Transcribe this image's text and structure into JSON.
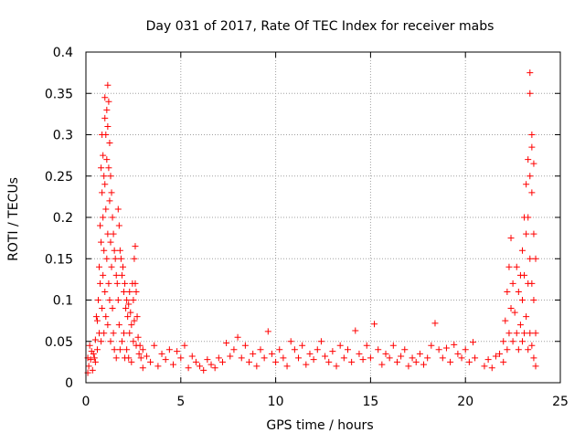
{
  "chart_data": {
    "type": "scatter",
    "title": "Day 031 of 2017, Rate Of TEC Index for receiver mabs",
    "xlabel": "GPS time / hours",
    "ylabel": "ROTI / TECUs",
    "xlim": [
      0,
      25
    ],
    "ylim": [
      0,
      0.4
    ],
    "x_ticks": [
      0,
      5,
      10,
      15,
      20,
      25
    ],
    "x_tick_labels": [
      "0",
      "5",
      "10",
      "15",
      "20",
      "25"
    ],
    "y_ticks": [
      0,
      0.05,
      0.1,
      0.15,
      0.2,
      0.25,
      0.3,
      0.35,
      0.4
    ],
    "y_tick_labels": [
      "0",
      "0.05",
      "0.1",
      "0.15",
      "0.2",
      "0.25",
      "0.3",
      "0.35",
      "0.4"
    ],
    "grid": true,
    "marker": "+",
    "marker_color": "#ff0000",
    "series": [
      {
        "name": "ROTI",
        "points": [
          [
            0.1,
            0.012
          ],
          [
            0.1,
            0.03
          ],
          [
            0.15,
            0.02
          ],
          [
            0.2,
            0.045
          ],
          [
            0.25,
            0.028
          ],
          [
            0.3,
            0.038
          ],
          [
            0.35,
            0.015
          ],
          [
            0.4,
            0.035
          ],
          [
            0.45,
            0.03
          ],
          [
            0.5,
            0.052
          ],
          [
            0.5,
            0.025
          ],
          [
            0.55,
            0.08
          ],
          [
            0.6,
            0.075
          ],
          [
            0.6,
            0.04
          ],
          [
            0.65,
            0.1
          ],
          [
            0.7,
            0.14
          ],
          [
            0.7,
            0.06
          ],
          [
            0.75,
            0.19
          ],
          [
            0.75,
            0.12
          ],
          [
            0.8,
            0.26
          ],
          [
            0.8,
            0.17
          ],
          [
            0.8,
            0.05
          ],
          [
            0.85,
            0.3
          ],
          [
            0.85,
            0.23
          ],
          [
            0.85,
            0.09
          ],
          [
            0.9,
            0.275
          ],
          [
            0.9,
            0.2
          ],
          [
            0.9,
            0.13
          ],
          [
            0.95,
            0.25
          ],
          [
            0.95,
            0.16
          ],
          [
            0.95,
            0.06
          ],
          [
            1.0,
            0.345
          ],
          [
            1.0,
            0.32
          ],
          [
            1.0,
            0.24
          ],
          [
            1.0,
            0.11
          ],
          [
            1.05,
            0.3
          ],
          [
            1.05,
            0.21
          ],
          [
            1.05,
            0.08
          ],
          [
            1.1,
            0.33
          ],
          [
            1.1,
            0.27
          ],
          [
            1.1,
            0.15
          ],
          [
            1.15,
            0.36
          ],
          [
            1.15,
            0.31
          ],
          [
            1.15,
            0.18
          ],
          [
            1.15,
            0.07
          ],
          [
            1.2,
            0.34
          ],
          [
            1.2,
            0.26
          ],
          [
            1.2,
            0.12
          ],
          [
            1.25,
            0.29
          ],
          [
            1.25,
            0.22
          ],
          [
            1.25,
            0.1
          ],
          [
            1.3,
            0.25
          ],
          [
            1.3,
            0.17
          ],
          [
            1.3,
            0.05
          ],
          [
            1.35,
            0.23
          ],
          [
            1.35,
            0.14
          ],
          [
            1.4,
            0.2
          ],
          [
            1.4,
            0.09
          ],
          [
            1.45,
            0.18
          ],
          [
            1.45,
            0.06
          ],
          [
            1.5,
            0.16
          ],
          [
            1.5,
            0.04
          ],
          [
            1.55,
            0.15
          ],
          [
            1.6,
            0.13
          ],
          [
            1.6,
            0.03
          ],
          [
            1.65,
            0.12
          ],
          [
            1.7,
            0.21
          ],
          [
            1.7,
            0.1
          ],
          [
            1.75,
            0.19
          ],
          [
            1.75,
            0.07
          ],
          [
            1.8,
            0.16
          ],
          [
            1.8,
            0.04
          ],
          [
            1.85,
            0.15
          ],
          [
            1.9,
            0.13
          ],
          [
            1.9,
            0.05
          ],
          [
            1.95,
            0.14
          ],
          [
            2.0,
            0.11
          ],
          [
            2.0,
            0.06
          ],
          [
            2.05,
            0.12
          ],
          [
            2.05,
            0.03
          ],
          [
            2.1,
            0.09
          ],
          [
            2.15,
            0.1
          ],
          [
            2.15,
            0.04
          ],
          [
            2.2,
            0.08
          ],
          [
            2.25,
            0.095
          ],
          [
            2.25,
            0.03
          ],
          [
            2.3,
            0.11
          ],
          [
            2.3,
            0.06
          ],
          [
            2.35,
            0.085
          ],
          [
            2.4,
            0.07
          ],
          [
            2.4,
            0.025
          ],
          [
            2.45,
            0.12
          ],
          [
            2.5,
            0.1
          ],
          [
            2.5,
            0.05
          ],
          [
            2.55,
            0.15
          ],
          [
            2.55,
            0.075
          ],
          [
            2.6,
            0.165
          ],
          [
            2.6,
            0.12
          ],
          [
            2.65,
            0.11
          ],
          [
            2.65,
            0.045
          ],
          [
            2.7,
            0.08
          ],
          [
            2.75,
            0.055
          ],
          [
            2.8,
            0.035
          ],
          [
            2.85,
            0.045
          ],
          [
            2.9,
            0.03
          ],
          [
            3.0,
            0.04
          ],
          [
            3.0,
            0.018
          ],
          [
            3.2,
            0.032
          ],
          [
            3.4,
            0.025
          ],
          [
            3.6,
            0.045
          ],
          [
            3.8,
            0.02
          ],
          [
            4.0,
            0.035
          ],
          [
            4.2,
            0.028
          ],
          [
            4.4,
            0.04
          ],
          [
            4.6,
            0.022
          ],
          [
            4.8,
            0.038
          ],
          [
            5.0,
            0.03
          ],
          [
            5.2,
            0.045
          ],
          [
            5.4,
            0.018
          ],
          [
            5.6,
            0.032
          ],
          [
            5.8,
            0.025
          ],
          [
            6.0,
            0.02
          ],
          [
            6.2,
            0.015
          ],
          [
            6.4,
            0.028
          ],
          [
            6.6,
            0.022
          ],
          [
            6.8,
            0.018
          ],
          [
            7.0,
            0.03
          ],
          [
            7.2,
            0.025
          ],
          [
            7.4,
            0.048
          ],
          [
            7.6,
            0.032
          ],
          [
            7.8,
            0.04
          ],
          [
            8.0,
            0.055
          ],
          [
            8.2,
            0.03
          ],
          [
            8.4,
            0.045
          ],
          [
            8.6,
            0.025
          ],
          [
            8.8,
            0.035
          ],
          [
            9.0,
            0.02
          ],
          [
            9.2,
            0.04
          ],
          [
            9.4,
            0.03
          ],
          [
            9.6,
            0.062
          ],
          [
            9.8,
            0.035
          ],
          [
            10.0,
            0.025
          ],
          [
            10.2,
            0.04
          ],
          [
            10.4,
            0.03
          ],
          [
            10.6,
            0.02
          ],
          [
            10.8,
            0.05
          ],
          [
            11.0,
            0.04
          ],
          [
            11.2,
            0.03
          ],
          [
            11.4,
            0.045
          ],
          [
            11.6,
            0.022
          ],
          [
            11.8,
            0.035
          ],
          [
            12.0,
            0.028
          ],
          [
            12.2,
            0.04
          ],
          [
            12.4,
            0.05
          ],
          [
            12.6,
            0.032
          ],
          [
            12.8,
            0.025
          ],
          [
            13.0,
            0.038
          ],
          [
            13.2,
            0.02
          ],
          [
            13.4,
            0.045
          ],
          [
            13.6,
            0.03
          ],
          [
            13.8,
            0.04
          ],
          [
            14.0,
            0.025
          ],
          [
            14.2,
            0.063
          ],
          [
            14.4,
            0.035
          ],
          [
            14.6,
            0.028
          ],
          [
            14.8,
            0.045
          ],
          [
            15.0,
            0.03
          ],
          [
            15.2,
            0.071
          ],
          [
            15.4,
            0.04
          ],
          [
            15.6,
            0.022
          ],
          [
            15.8,
            0.035
          ],
          [
            16.0,
            0.03
          ],
          [
            16.2,
            0.045
          ],
          [
            16.4,
            0.025
          ],
          [
            16.6,
            0.032
          ],
          [
            16.8,
            0.04
          ],
          [
            17.0,
            0.02
          ],
          [
            17.2,
            0.03
          ],
          [
            17.4,
            0.025
          ],
          [
            17.6,
            0.035
          ],
          [
            17.8,
            0.022
          ],
          [
            18.0,
            0.03
          ],
          [
            18.2,
            0.045
          ],
          [
            18.4,
            0.072
          ],
          [
            18.6,
            0.04
          ],
          [
            18.8,
            0.03
          ],
          [
            19.0,
            0.042
          ],
          [
            19.2,
            0.025
          ],
          [
            19.4,
            0.046
          ],
          [
            19.6,
            0.035
          ],
          [
            19.8,
            0.03
          ],
          [
            20.0,
            0.04
          ],
          [
            20.2,
            0.025
          ],
          [
            20.4,
            0.049
          ],
          [
            20.5,
            0.03
          ],
          [
            21.0,
            0.02
          ],
          [
            21.2,
            0.028
          ],
          [
            21.4,
            0.018
          ],
          [
            21.6,
            0.032
          ],
          [
            21.8,
            0.035
          ],
          [
            22.0,
            0.05
          ],
          [
            22.0,
            0.025
          ],
          [
            22.1,
            0.075
          ],
          [
            22.2,
            0.11
          ],
          [
            22.2,
            0.04
          ],
          [
            22.3,
            0.14
          ],
          [
            22.3,
            0.06
          ],
          [
            22.4,
            0.175
          ],
          [
            22.4,
            0.09
          ],
          [
            22.5,
            0.12
          ],
          [
            22.5,
            0.05
          ],
          [
            22.6,
            0.085
          ],
          [
            22.7,
            0.14
          ],
          [
            22.7,
            0.06
          ],
          [
            22.8,
            0.11
          ],
          [
            22.8,
            0.04
          ],
          [
            22.9,
            0.13
          ],
          [
            22.9,
            0.07
          ],
          [
            23.0,
            0.16
          ],
          [
            23.0,
            0.1
          ],
          [
            23.0,
            0.05
          ],
          [
            23.1,
            0.2
          ],
          [
            23.1,
            0.13
          ],
          [
            23.1,
            0.06
          ],
          [
            23.2,
            0.24
          ],
          [
            23.2,
            0.18
          ],
          [
            23.2,
            0.08
          ],
          [
            23.3,
            0.27
          ],
          [
            23.3,
            0.2
          ],
          [
            23.3,
            0.12
          ],
          [
            23.3,
            0.04
          ],
          [
            23.4,
            0.375
          ],
          [
            23.4,
            0.35
          ],
          [
            23.4,
            0.25
          ],
          [
            23.4,
            0.15
          ],
          [
            23.4,
            0.06
          ],
          [
            23.5,
            0.3
          ],
          [
            23.5,
            0.285
          ],
          [
            23.5,
            0.23
          ],
          [
            23.5,
            0.12
          ],
          [
            23.5,
            0.045
          ],
          [
            23.6,
            0.265
          ],
          [
            23.6,
            0.18
          ],
          [
            23.6,
            0.1
          ],
          [
            23.6,
            0.03
          ],
          [
            23.7,
            0.15
          ],
          [
            23.7,
            0.06
          ],
          [
            23.7,
            0.02
          ]
        ]
      }
    ]
  }
}
